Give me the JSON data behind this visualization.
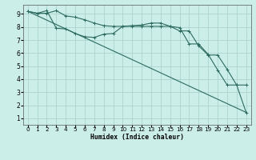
{
  "xlabel": "Humidex (Indice chaleur)",
  "background_color": "#cceee8",
  "grid_color": "#aad4cc",
  "line_color": "#2d6b60",
  "xlim": [
    -0.5,
    23.5
  ],
  "ylim": [
    0.5,
    9.7
  ],
  "xticks": [
    0,
    1,
    2,
    3,
    4,
    5,
    6,
    7,
    8,
    9,
    10,
    11,
    12,
    13,
    14,
    15,
    16,
    17,
    18,
    19,
    20,
    21,
    22,
    23
  ],
  "yticks": [
    1,
    2,
    3,
    4,
    5,
    6,
    7,
    8,
    9
  ],
  "line1_x": [
    0,
    1,
    2,
    3,
    4,
    5,
    6,
    7,
    8,
    9,
    10,
    11,
    12,
    13,
    14,
    15,
    16,
    17,
    18,
    19,
    20,
    21,
    22,
    23
  ],
  "line1_y": [
    9.2,
    9.05,
    9.25,
    7.9,
    7.85,
    7.5,
    7.25,
    7.2,
    7.45,
    7.5,
    8.05,
    8.1,
    8.15,
    8.3,
    8.3,
    8.05,
    7.95,
    6.7,
    6.7,
    5.9,
    4.7,
    3.55,
    3.55,
    1.45
  ],
  "line2_x": [
    0,
    1,
    2,
    3,
    4,
    5,
    6,
    7,
    8,
    9,
    10,
    11,
    12,
    13,
    14,
    15,
    16,
    17,
    18,
    19,
    20,
    21,
    22,
    23
  ],
  "line2_y": [
    9.2,
    9.05,
    9.05,
    9.25,
    8.85,
    8.75,
    8.55,
    8.3,
    8.1,
    8.05,
    8.05,
    8.05,
    8.05,
    8.05,
    8.05,
    8.05,
    7.7,
    7.7,
    6.55,
    5.85,
    5.85,
    4.75,
    3.55,
    3.55
  ],
  "line3_x": [
    0,
    23
  ],
  "line3_y": [
    9.2,
    1.45
  ]
}
